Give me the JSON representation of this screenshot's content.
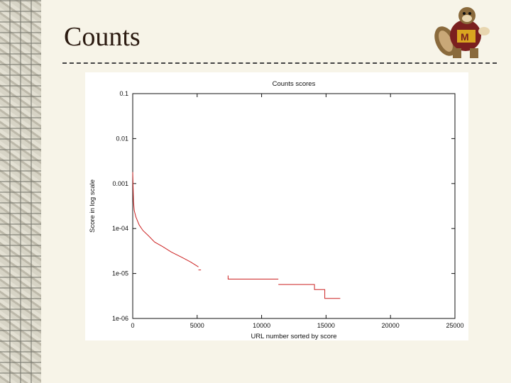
{
  "slide": {
    "title": "Counts"
  },
  "colors": {
    "series": "#cc2222",
    "axis": "#111111",
    "background": "#f7f4e8"
  },
  "icons": {
    "mascot": "gopher-mascot-icon"
  },
  "chart_data": {
    "type": "line",
    "title": "Counts scores",
    "xlabel": "URL number sorted by score",
    "ylabel": "Score in log scale",
    "xlim": [
      0,
      25000
    ],
    "ylim": [
      1e-06,
      0.1
    ],
    "yscale": "log",
    "grid": false,
    "legend": "none",
    "x_ticks": [
      "0",
      "5000",
      "10000",
      "15000",
      "20000",
      "25000"
    ],
    "x_tick_values": [
      0,
      5000,
      10000,
      15000,
      20000,
      25000
    ],
    "y_ticks": [
      "1e-06",
      "1e-05",
      "1e-04",
      "0.001",
      "0.01",
      "0.1"
    ],
    "y_tick_values": [
      1e-06,
      1e-05,
      0.0001,
      0.001,
      0.01,
      0.1
    ],
    "series": [
      {
        "segments": [
          [
            [
              0,
              0.0018
            ],
            [
              30,
              0.0009
            ],
            [
              60,
              0.0004
            ],
            [
              120,
              0.00025
            ],
            [
              250,
              0.00018
            ],
            [
              500,
              0.00012
            ],
            [
              800,
              9e-05
            ],
            [
              1200,
              7e-05
            ],
            [
              1700,
              5e-05
            ],
            [
              2300,
              4e-05
            ],
            [
              3000,
              3e-05
            ],
            [
              3800,
              2.3e-05
            ],
            [
              4500,
              1.8e-05
            ],
            [
              5100,
              1.4e-05
            ]
          ],
          [
            [
              5100,
              1.2e-05
            ],
            [
              5300,
              1.2e-05
            ]
          ],
          [
            [
              7400,
              9e-06
            ],
            [
              7400,
              7.5e-06
            ],
            [
              11300,
              7.5e-06
            ]
          ],
          [
            [
              11300,
              5.7e-06
            ],
            [
              14100,
              5.7e-06
            ],
            [
              14100,
              4.4e-06
            ],
            [
              14900,
              4.4e-06
            ],
            [
              14900,
              2.8e-06
            ],
            [
              16100,
              2.8e-06
            ]
          ]
        ]
      }
    ]
  }
}
